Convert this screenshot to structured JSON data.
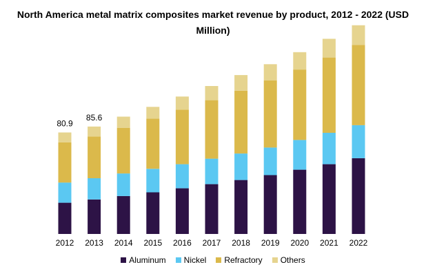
{
  "chart_data": {
    "type": "bar",
    "stacked": true,
    "title": "North America metal matrix composites market revenue by product, 2012 - 2022 (USD Million)",
    "categories": [
      "2012",
      "2013",
      "2014",
      "2015",
      "2016",
      "2017",
      "2018",
      "2019",
      "2020",
      "2021",
      "2022"
    ],
    "series": [
      {
        "name": "Aluminum",
        "color": "#2d1346",
        "values": [
          24.9,
          27.5,
          30.2,
          33.2,
          36.4,
          39.7,
          43.0,
          46.9,
          51.2,
          55.6,
          60.4
        ]
      },
      {
        "name": "Nickel",
        "color": "#5bc8f2",
        "values": [
          16.1,
          16.9,
          18.0,
          18.7,
          19.2,
          20.3,
          21.1,
          22.0,
          23.7,
          25.0,
          26.3
        ]
      },
      {
        "name": "Refractory",
        "color": "#dbb94b",
        "values": [
          32.0,
          33.3,
          36.4,
          40.0,
          43.5,
          46.6,
          50.0,
          53.4,
          56.1,
          60.0,
          64.0
        ]
      },
      {
        "name": "Others",
        "color": "#e6d48f",
        "values": [
          7.9,
          7.9,
          8.9,
          9.4,
          10.4,
          11.3,
          12.5,
          13.0,
          13.9,
          14.9,
          15.6
        ]
      }
    ],
    "data_labels": [
      {
        "category": "2012",
        "text": "80.9"
      },
      {
        "category": "2013",
        "text": "85.6"
      }
    ],
    "ylim": [
      0,
      170
    ],
    "grid": false,
    "legend_position": "bottom"
  }
}
